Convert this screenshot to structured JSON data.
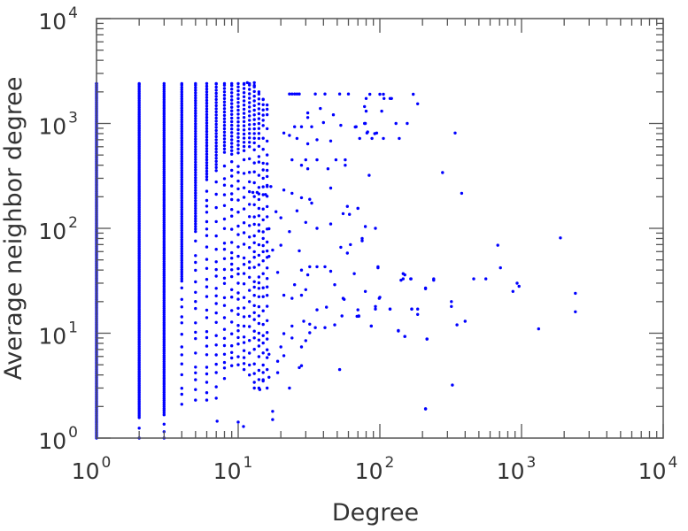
{
  "chart_data": {
    "type": "scatter",
    "title": "",
    "xlabel": "Degree",
    "ylabel": "Average neighbor degree",
    "xscale": "log",
    "yscale": "log",
    "xlim": [
      1,
      10000
    ],
    "ylim": [
      1,
      10000
    ],
    "x_tick_labels": [
      {
        "base": "10",
        "exp": "0"
      },
      {
        "base": "10",
        "exp": "1"
      },
      {
        "base": "10",
        "exp": "2"
      },
      {
        "base": "10",
        "exp": "3"
      },
      {
        "base": "10",
        "exp": "4"
      }
    ],
    "y_tick_labels": [
      {
        "base": "10",
        "exp": "0"
      },
      {
        "base": "10",
        "exp": "1"
      },
      {
        "base": "10",
        "exp": "2"
      },
      {
        "base": "10",
        "exp": "3"
      },
      {
        "base": "10",
        "exp": "4"
      }
    ],
    "grid": false,
    "legend": "none",
    "marker_color": "#0000ff",
    "dense_columns": [
      {
        "degree": 1,
        "y_min": 1,
        "y_max": 2400,
        "dense_above": 1
      },
      {
        "degree": 2,
        "y_min": 1,
        "y_max": 2400,
        "dense_above": 1.3
      },
      {
        "degree": 3,
        "y_min": 1,
        "y_max": 2400,
        "dense_above": 1.6
      },
      {
        "degree": 4,
        "y_min": 2.1,
        "y_max": 2400,
        "dense_above": 30
      },
      {
        "degree": 5,
        "y_min": 2.3,
        "y_max": 2400,
        "dense_above": 80
      },
      {
        "degree": 6,
        "y_min": 2.3,
        "y_max": 2400,
        "dense_above": 250
      },
      {
        "degree": 7,
        "y_min": 2.4,
        "y_max": 2400,
        "dense_above": 300
      },
      {
        "degree": 8,
        "y_min": 3.7,
        "y_max": 2400,
        "dense_above": 400
      },
      {
        "degree": 9,
        "y_min": 4.9,
        "y_max": 2400,
        "dense_above": 450
      },
      {
        "degree": 10,
        "y_min": 5,
        "y_max": 2400,
        "dense_above": 500
      },
      {
        "degree": 11,
        "y_min": 4.5,
        "y_max": 2400,
        "dense_above": 500
      },
      {
        "degree": 12,
        "y_min": 4,
        "y_max": 2400,
        "dense_above": 600
      },
      {
        "degree": 13,
        "y_min": 3,
        "y_max": 2300,
        "dense_above": 600
      },
      {
        "degree": 14,
        "y_min": 3,
        "y_max": 2000,
        "dense_above": 700
      },
      {
        "degree": 15,
        "y_min": 3.5,
        "y_max": 1700,
        "dense_above": 800
      },
      {
        "degree": 16,
        "y_min": 4.5,
        "y_max": 1500,
        "dense_above": 900
      }
    ],
    "points": [
      [
        11.6,
        2450
      ],
      [
        13,
        2450
      ],
      [
        23,
        1910
      ],
      [
        24,
        1910
      ],
      [
        25,
        1910
      ],
      [
        26,
        1910
      ],
      [
        27,
        1910
      ],
      [
        35,
        1910
      ],
      [
        41,
        1910
      ],
      [
        52,
        1910
      ],
      [
        60,
        1910
      ],
      [
        85,
        1900
      ],
      [
        100,
        1900
      ],
      [
        106,
        1900
      ],
      [
        172,
        1900
      ],
      [
        80,
        1730
      ],
      [
        107,
        1730
      ],
      [
        118,
        1730
      ],
      [
        121,
        1730
      ],
      [
        185,
        1540
      ],
      [
        78,
        1450
      ],
      [
        80,
        1310
      ],
      [
        103,
        1310
      ],
      [
        78,
        1000
      ],
      [
        130,
        1000
      ],
      [
        156,
        1000
      ],
      [
        67,
        925
      ],
      [
        81,
        810
      ],
      [
        95,
        810
      ],
      [
        340,
        810
      ],
      [
        72,
        720
      ],
      [
        88,
        720
      ],
      [
        106,
        720
      ],
      [
        137,
        720
      ],
      [
        277,
        340
      ],
      [
        84,
        320
      ],
      [
        378,
        216
      ],
      [
        70,
        155
      ],
      [
        79,
        104
      ],
      [
        93,
        100
      ],
      [
        1880,
        81
      ],
      [
        75,
        76
      ],
      [
        680,
        69
      ],
      [
        710,
        42
      ],
      [
        97,
        42
      ],
      [
        66,
        37
      ],
      [
        146,
        37
      ],
      [
        146,
        33
      ],
      [
        166,
        33
      ],
      [
        240,
        33
      ],
      [
        460,
        33
      ],
      [
        560,
        33
      ],
      [
        930,
        30
      ],
      [
        960,
        28
      ],
      [
        210,
        26.5
      ],
      [
        79,
        25
      ],
      [
        870,
        25
      ],
      [
        2400,
        24
      ],
      [
        100,
        22
      ],
      [
        320,
        20
      ],
      [
        320,
        18
      ],
      [
        93,
        17
      ],
      [
        118,
        17
      ],
      [
        168,
        17
      ],
      [
        185,
        17
      ],
      [
        69,
        14.5
      ],
      [
        71,
        14.5
      ],
      [
        2400,
        16
      ],
      [
        400,
        13
      ],
      [
        350,
        12
      ],
      [
        87,
        11.7
      ],
      [
        1320,
        11
      ],
      [
        135,
        10.5
      ],
      [
        150,
        9.3
      ],
      [
        215,
        8.8
      ],
      [
        325,
        3.2
      ],
      [
        210,
        1.9
      ],
      [
        38,
        1390
      ],
      [
        31,
        1260
      ],
      [
        31,
        1140
      ],
      [
        47,
        1210
      ],
      [
        40,
        1020
      ],
      [
        53,
        960
      ],
      [
        68,
        930
      ],
      [
        79,
        1000
      ],
      [
        82,
        830
      ],
      [
        92,
        800
      ],
      [
        25,
        930
      ],
      [
        28,
        930
      ],
      [
        33,
        930
      ],
      [
        21,
        810
      ],
      [
        23,
        770
      ],
      [
        26,
        720
      ],
      [
        31,
        640
      ],
      [
        36,
        700
      ],
      [
        45,
        680
      ],
      [
        24,
        450
      ],
      [
        30,
        450
      ],
      [
        36,
        450
      ],
      [
        49,
        450
      ],
      [
        57,
        450
      ],
      [
        43,
        370
      ],
      [
        57,
        400
      ],
      [
        31,
        370
      ],
      [
        28,
        400
      ],
      [
        45,
        242
      ],
      [
        24,
        216
      ],
      [
        28,
        196
      ],
      [
        32,
        189
      ],
      [
        33,
        174
      ],
      [
        21,
        232
      ],
      [
        16,
        250
      ],
      [
        17,
        250
      ],
      [
        12.7,
        220
      ],
      [
        13.6,
        220
      ],
      [
        15.6,
        210
      ],
      [
        59,
        162
      ],
      [
        70,
        155
      ],
      [
        55,
        138
      ],
      [
        61,
        136
      ],
      [
        18.5,
        144
      ],
      [
        26,
        147
      ],
      [
        20,
        126
      ],
      [
        30,
        114
      ],
      [
        36,
        100
      ],
      [
        45,
        110
      ],
      [
        16.5,
        99
      ],
      [
        23,
        93
      ],
      [
        75,
        80
      ],
      [
        62,
        70
      ],
      [
        53,
        66
      ],
      [
        59,
        58
      ],
      [
        45,
        39
      ],
      [
        36,
        43
      ],
      [
        41,
        43
      ],
      [
        32,
        43
      ],
      [
        31,
        36
      ],
      [
        20,
        69
      ],
      [
        27,
        61
      ],
      [
        17.5,
        62
      ],
      [
        16.5,
        54
      ],
      [
        19,
        38
      ],
      [
        28,
        40
      ],
      [
        25,
        29
      ],
      [
        30,
        26
      ],
      [
        21,
        23
      ],
      [
        24,
        21.5
      ],
      [
        28,
        23
      ],
      [
        48,
        29
      ],
      [
        55,
        21.5
      ],
      [
        56,
        21
      ],
      [
        99,
        21.5
      ],
      [
        97,
        43
      ],
      [
        150,
        36
      ],
      [
        165,
        33
      ],
      [
        141,
        32
      ],
      [
        240,
        32
      ],
      [
        210,
        27
      ],
      [
        36,
        16.7
      ],
      [
        42,
        17.7
      ],
      [
        54,
        14.6
      ],
      [
        70,
        16.7
      ],
      [
        71,
        14.6
      ],
      [
        93,
        18
      ],
      [
        118,
        17
      ],
      [
        168,
        17
      ],
      [
        185,
        15.1
      ],
      [
        87,
        11.7
      ],
      [
        135,
        10.6
      ],
      [
        150,
        9.3
      ],
      [
        215,
        8.8
      ],
      [
        29,
        13
      ],
      [
        32,
        12.2
      ],
      [
        35,
        11.3
      ],
      [
        41,
        11.3
      ],
      [
        48,
        12
      ],
      [
        24,
        11.7
      ],
      [
        32,
        10.1
      ],
      [
        30,
        8.5
      ],
      [
        28,
        7.4
      ],
      [
        24,
        9
      ],
      [
        21,
        9.9
      ],
      [
        20,
        7.4
      ],
      [
        16.5,
        6.3
      ],
      [
        19,
        5.4
      ],
      [
        21,
        6.1
      ],
      [
        27,
        4.7
      ],
      [
        28,
        4.9
      ],
      [
        52,
        4.5
      ],
      [
        23,
        3.0
      ],
      [
        16,
        3.0
      ],
      [
        14.2,
        2.9
      ],
      [
        15,
        3.6
      ],
      [
        16.5,
        3.8
      ],
      [
        19,
        4.2
      ],
      [
        17.5,
        1.8
      ],
      [
        17.5,
        1.5
      ],
      [
        210,
        1.9
      ],
      [
        10.9,
        1.29
      ],
      [
        10,
        1.42
      ],
      [
        7.1,
        1.45
      ]
    ]
  }
}
